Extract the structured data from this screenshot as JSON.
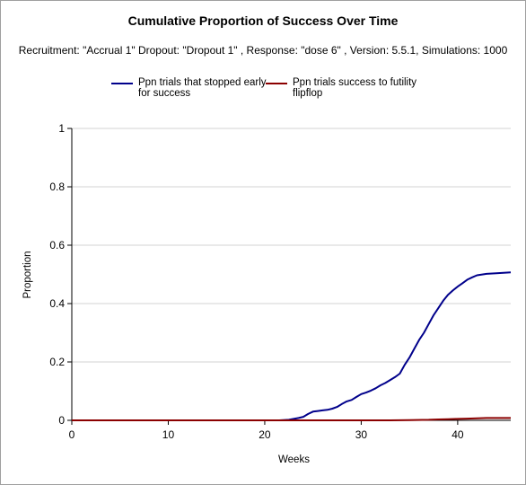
{
  "chart_data": {
    "type": "line",
    "title": "Cumulative Proportion of Success Over Time",
    "subtitle": "Recruitment: \"Accrual 1\" Dropout: \"Dropout 1\" , Response: \"dose 6\" , Version: 5.5.1, Simulations: 1000",
    "xlabel": "Weeks",
    "ylabel": "Proportion",
    "xlim": [
      0,
      45.5
    ],
    "ylim": [
      0,
      1
    ],
    "x_ticks": [
      "0",
      "10",
      "20",
      "30",
      "40"
    ],
    "y_ticks": [
      "0",
      "0.2",
      "0.4",
      "0.6",
      "0.8",
      "1"
    ],
    "grid": "horizontal",
    "legend_position": "top",
    "series": [
      {
        "name_lines": [
          "Ppn trials that stopped early",
          "for success"
        ],
        "color": "#00008b",
        "points": [
          [
            0,
            0
          ],
          [
            21.5,
            0
          ],
          [
            22.5,
            0.002
          ],
          [
            23,
            0.005
          ],
          [
            23.5,
            0.008
          ],
          [
            24,
            0.012
          ],
          [
            24.5,
            0.022
          ],
          [
            25,
            0.03
          ],
          [
            25.5,
            0.032
          ],
          [
            26,
            0.034
          ],
          [
            26.5,
            0.036
          ],
          [
            27,
            0.04
          ],
          [
            27.5,
            0.046
          ],
          [
            28,
            0.056
          ],
          [
            28.5,
            0.065
          ],
          [
            29,
            0.07
          ],
          [
            29.5,
            0.08
          ],
          [
            30,
            0.09
          ],
          [
            30.5,
            0.095
          ],
          [
            31,
            0.102
          ],
          [
            31.5,
            0.11
          ],
          [
            32,
            0.12
          ],
          [
            32.5,
            0.128
          ],
          [
            33,
            0.138
          ],
          [
            33.5,
            0.148
          ],
          [
            34,
            0.16
          ],
          [
            34.5,
            0.19
          ],
          [
            35,
            0.215
          ],
          [
            35.5,
            0.245
          ],
          [
            36,
            0.275
          ],
          [
            36.5,
            0.3
          ],
          [
            37,
            0.33
          ],
          [
            37.5,
            0.36
          ],
          [
            38,
            0.385
          ],
          [
            38.5,
            0.41
          ],
          [
            39,
            0.43
          ],
          [
            39.5,
            0.445
          ],
          [
            40,
            0.458
          ],
          [
            40.5,
            0.47
          ],
          [
            41,
            0.482
          ],
          [
            41.5,
            0.49
          ],
          [
            42,
            0.497
          ],
          [
            43,
            0.502
          ],
          [
            44,
            0.504
          ],
          [
            45.5,
            0.507
          ]
        ]
      },
      {
        "name_lines": [
          "Ppn trials success to futility",
          "flipflop"
        ],
        "color": "#8b0000",
        "points": [
          [
            0,
            0
          ],
          [
            33,
            0
          ],
          [
            35,
            0.001
          ],
          [
            37,
            0.002
          ],
          [
            38,
            0.003
          ],
          [
            39,
            0.004
          ],
          [
            40,
            0.005
          ],
          [
            41,
            0.006
          ],
          [
            42,
            0.007
          ],
          [
            43,
            0.008
          ],
          [
            45.5,
            0.008
          ]
        ]
      }
    ]
  }
}
